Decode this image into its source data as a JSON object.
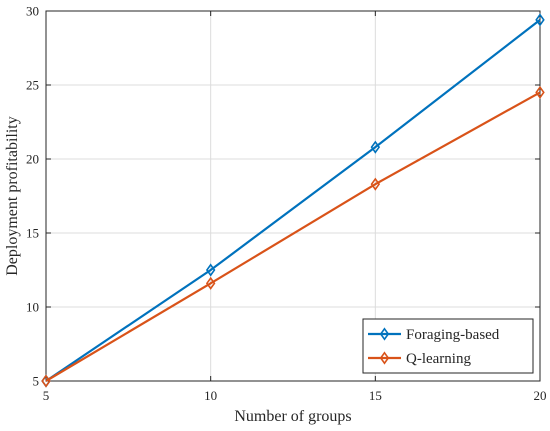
{
  "chart_data": {
    "type": "line",
    "xlabel": "Number of groups",
    "ylabel": "Deployment profitability",
    "x": [
      5,
      10,
      15,
      20
    ],
    "xlim": [
      5,
      20
    ],
    "ylim": [
      5,
      30
    ],
    "xticks": [
      "5",
      "10",
      "15",
      "20"
    ],
    "yticks": [
      "5",
      "10",
      "15",
      "20",
      "25",
      "30"
    ],
    "grid": true,
    "legend_position": "bottom-right",
    "series": [
      {
        "name": "Foraging-based",
        "values": [
          5.0,
          12.5,
          20.8,
          29.4
        ],
        "color": "#0072BD",
        "marker": "diamond"
      },
      {
        "name": "Q-learning",
        "values": [
          5.0,
          11.6,
          18.3,
          24.5
        ],
        "color": "#D95319",
        "marker": "diamond"
      }
    ]
  }
}
